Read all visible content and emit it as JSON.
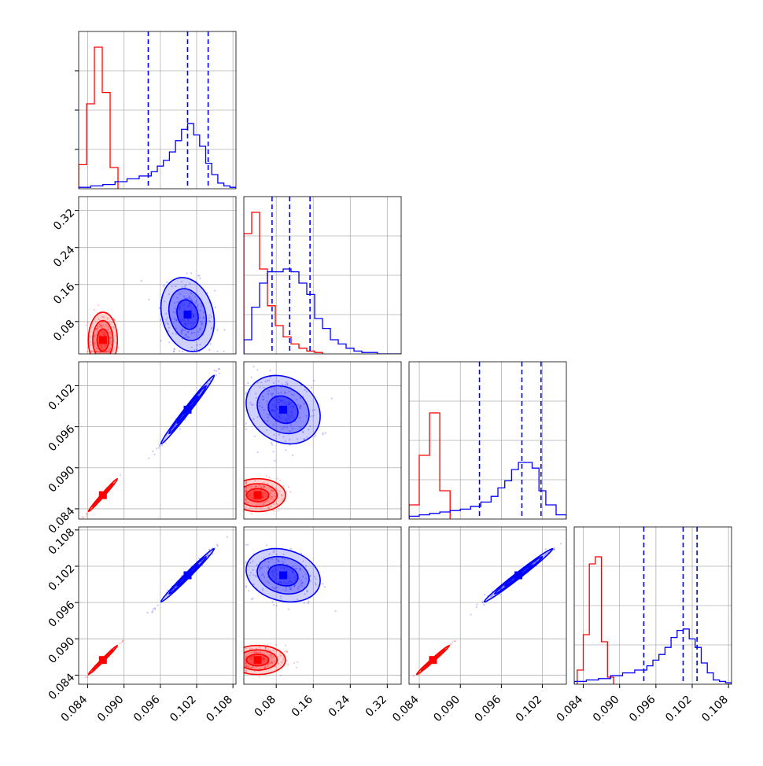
{
  "chart_data": {
    "type": "corner",
    "parameters": [
      {
        "ticks": [
          "0.084",
          "0.090",
          "0.096",
          "0.102",
          "0.108"
        ],
        "tick_values": [
          0.084,
          0.09,
          0.096,
          0.102,
          0.108
        ],
        "range": [
          0.0825,
          0.1085
        ]
      },
      {
        "ticks": [
          "0.08",
          "0.16",
          "0.24",
          "0.32"
        ],
        "tick_values": [
          0.08,
          0.16,
          0.24,
          0.32
        ],
        "range": [
          0.01,
          0.35
        ]
      },
      {
        "ticks": [
          "0.084",
          "0.090",
          "0.096",
          "0.102"
        ],
        "tick_values": [
          0.084,
          0.09,
          0.096,
          0.102
        ],
        "range": [
          0.0825,
          0.1055
        ]
      },
      {
        "ticks": [
          "0.084",
          "0.090",
          "0.096",
          "0.102",
          "0.108"
        ],
        "tick_values": [
          0.084,
          0.09,
          0.096,
          0.102,
          0.108
        ],
        "range": [
          0.0825,
          0.1085
        ]
      }
    ],
    "series": [
      {
        "color": "#ff0000",
        "mean": [
          0.0865,
          0.04,
          0.086,
          0.0865
        ],
        "spread": [
          0.0012,
          0.03,
          0.0012,
          0.0012
        ],
        "corr": [
          [
            1,
            0,
            0.99,
            0.99
          ],
          [
            0,
            1,
            0,
            0
          ],
          [
            0.99,
            0,
            1,
            0.99
          ],
          [
            0.99,
            0,
            0.99,
            1
          ]
        ],
        "histograms": [
          {
            "edges": [
              0.0825,
              0.0838,
              0.0851,
              0.0864,
              0.0877,
              0.089
            ],
            "counts": [
              0.17,
              0.6,
              1.0,
              0.68,
              0.15
            ]
          },
          {
            "edges": [
              0.01,
              0.027,
              0.044,
              0.061,
              0.078,
              0.095,
              0.112,
              0.129,
              0.146,
              0.163,
              0.18
            ],
            "counts": [
              0.85,
              1.0,
              0.6,
              0.34,
              0.2,
              0.12,
              0.07,
              0.04,
              0.02,
              0.01
            ]
          },
          {
            "edges": [
              0.0825,
              0.084,
              0.0855,
              0.087,
              0.0885
            ],
            "counts": [
              0.1,
              0.45,
              0.75,
              0.2
            ]
          },
          {
            "edges": [
              0.083,
              0.084,
              0.085,
              0.086,
              0.087,
              0.088,
              0.089
            ],
            "counts": [
              0.1,
              0.35,
              0.85,
              0.9,
              0.3,
              0.05
            ]
          }
        ]
      },
      {
        "color": "#0000ff",
        "mean": [
          0.1005,
          0.095,
          0.0985,
          0.1005
        ],
        "spread": [
          0.0022,
          0.04,
          0.0025,
          0.0022
        ],
        "corr": [
          [
            1,
            -0.2,
            0.99,
            0.99
          ],
          [
            -0.2,
            1,
            -0.2,
            -0.2
          ],
          [
            0.99,
            -0.2,
            1,
            0.99
          ],
          [
            0.99,
            -0.2,
            0.99,
            1
          ]
        ],
        "quantiles": [
          [
            0.094,
            0.1005,
            0.1039
          ],
          [
            0.071,
            0.109,
            0.153
          ],
          [
            0.0928,
            0.099,
            0.1018
          ],
          [
            0.094,
            0.1005,
            0.1028
          ]
        ],
        "histograms": [
          {
            "edges": [
              0.0825,
              0.0845,
              0.0865,
              0.0885,
              0.0905,
              0.0925,
              0.0945,
              0.0955,
              0.0965,
              0.0975,
              0.0985,
              0.0995,
              0.1005,
              0.1015,
              0.1025,
              0.1035,
              0.1045,
              0.1055,
              0.1065,
              0.1075,
              0.1085
            ],
            "counts": [
              0.01,
              0.02,
              0.03,
              0.05,
              0.07,
              0.09,
              0.12,
              0.16,
              0.2,
              0.26,
              0.34,
              0.42,
              0.46,
              0.38,
              0.3,
              0.18,
              0.1,
              0.04,
              0.02,
              0.01
            ]
          },
          {
            "edges": [
              0.01,
              0.027,
              0.044,
              0.061,
              0.078,
              0.095,
              0.112,
              0.129,
              0.146,
              0.163,
              0.18,
              0.197,
              0.214,
              0.231,
              0.248,
              0.265,
              0.282,
              0.299,
              0.316,
              0.333,
              0.35
            ],
            "counts": [
              0.1,
              0.33,
              0.5,
              0.58,
              0.58,
              0.6,
              0.58,
              0.5,
              0.42,
              0.25,
              0.18,
              0.1,
              0.07,
              0.04,
              0.02,
              0.01,
              0.01,
              0.0,
              0.0,
              0.0
            ]
          },
          {
            "edges": [
              0.0825,
              0.084,
              0.0855,
              0.087,
              0.0885,
              0.09,
              0.0915,
              0.093,
              0.0945,
              0.0955,
              0.0965,
              0.0975,
              0.0985,
              0.0995,
              0.1005,
              0.1015,
              0.1025,
              0.104,
              0.1055
            ],
            "counts": [
              0.02,
              0.03,
              0.04,
              0.05,
              0.06,
              0.07,
              0.09,
              0.12,
              0.16,
              0.22,
              0.27,
              0.35,
              0.4,
              0.4,
              0.36,
              0.2,
              0.1,
              0.03
            ]
          },
          {
            "edges": [
              0.0825,
              0.0845,
              0.0865,
              0.0885,
              0.0905,
              0.0925,
              0.0945,
              0.0955,
              0.0965,
              0.0975,
              0.0985,
              0.0995,
              0.1005,
              0.1015,
              0.1025,
              0.1035,
              0.1045,
              0.1055,
              0.1065,
              0.1075,
              0.1085
            ],
            "counts": [
              0.02,
              0.03,
              0.04,
              0.06,
              0.08,
              0.1,
              0.13,
              0.17,
              0.21,
              0.26,
              0.33,
              0.38,
              0.39,
              0.32,
              0.26,
              0.15,
              0.08,
              0.03,
              0.02,
              0.01
            ]
          }
        ]
      }
    ],
    "grid": true,
    "xlabel": "",
    "ylabel": ""
  }
}
